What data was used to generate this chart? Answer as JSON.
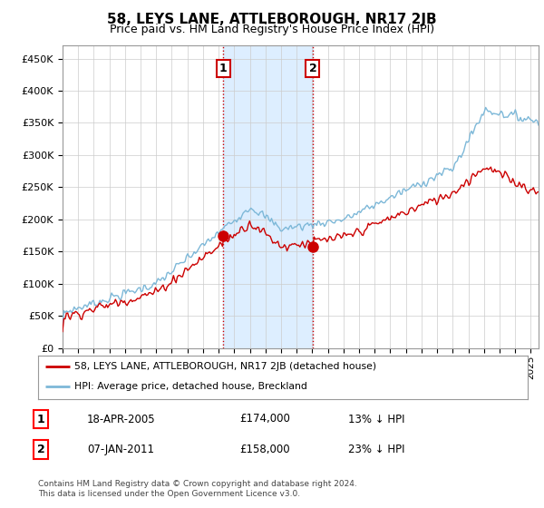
{
  "title": "58, LEYS LANE, ATTLEBOROUGH, NR17 2JB",
  "subtitle": "Price paid vs. HM Land Registry's House Price Index (HPI)",
  "ylabel_ticks": [
    "£0",
    "£50K",
    "£100K",
    "£150K",
    "£200K",
    "£250K",
    "£300K",
    "£350K",
    "£400K",
    "£450K"
  ],
  "ytick_vals": [
    0,
    50000,
    100000,
    150000,
    200000,
    250000,
    300000,
    350000,
    400000,
    450000
  ],
  "ylim": [
    0,
    470000
  ],
  "xlim_start": 1995.0,
  "xlim_end": 2025.5,
  "hpi_color": "#7db8d8",
  "price_color": "#cc0000",
  "transaction1_date": 2005.3,
  "transaction1_price": 174000,
  "transaction2_date": 2011.03,
  "transaction2_price": 158000,
  "shading_color": "#ddeeff",
  "vline_color": "#cc0000",
  "background_color": "#ffffff",
  "grid_color": "#cccccc",
  "legend_entry1": "58, LEYS LANE, ATTLEBOROUGH, NR17 2JB (detached house)",
  "legend_entry2": "HPI: Average price, detached house, Breckland",
  "table_row1_num": "1",
  "table_row1_date": "18-APR-2005",
  "table_row1_price": "£174,000",
  "table_row1_hpi": "13% ↓ HPI",
  "table_row2_num": "2",
  "table_row2_date": "07-JAN-2011",
  "table_row2_price": "£158,000",
  "table_row2_hpi": "23% ↓ HPI",
  "footer": "Contains HM Land Registry data © Crown copyright and database right 2024.\nThis data is licensed under the Open Government Licence v3.0."
}
